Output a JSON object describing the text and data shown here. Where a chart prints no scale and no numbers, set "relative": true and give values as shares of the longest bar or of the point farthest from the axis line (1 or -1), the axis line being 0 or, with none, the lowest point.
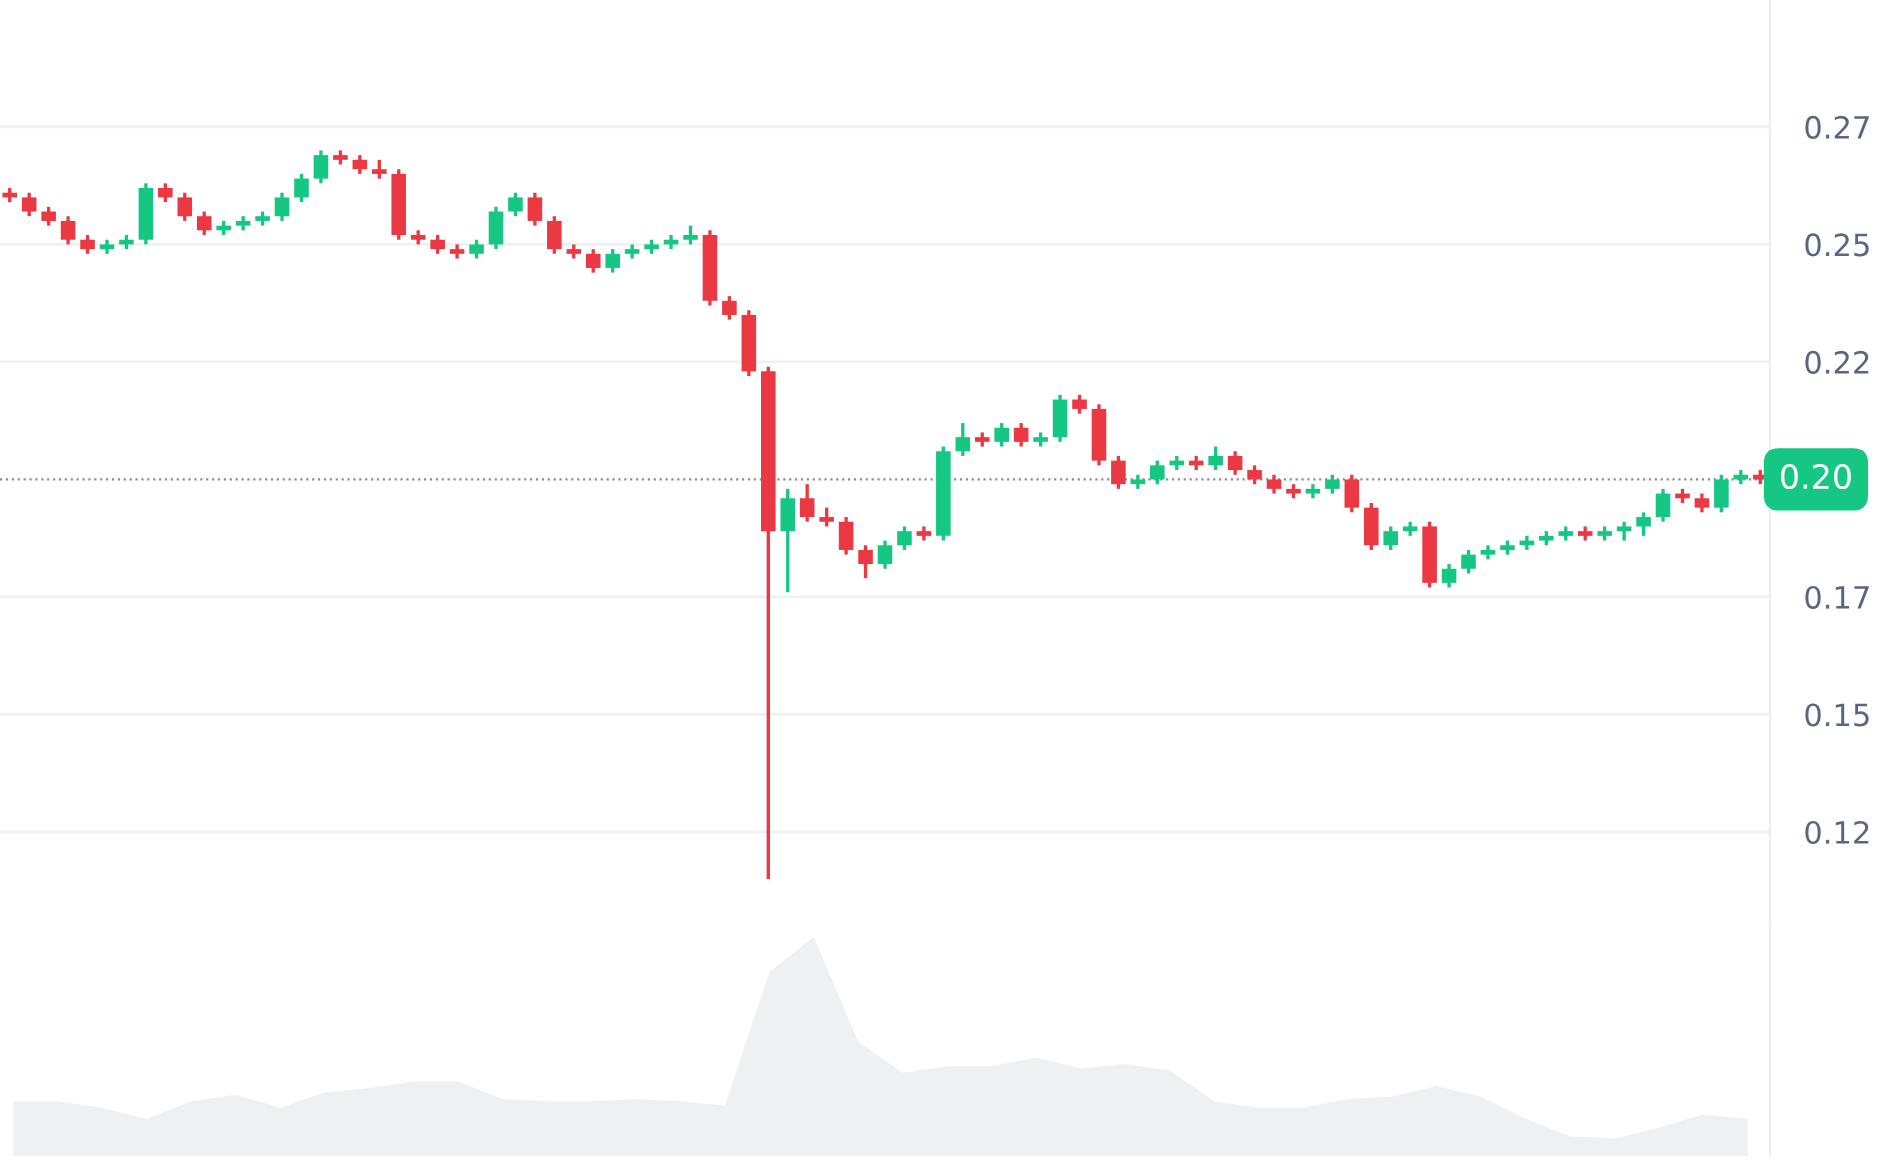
{
  "chart_data": [
    {
      "type": "candlestick",
      "categories": [
        null,
        null,
        null,
        null,
        null,
        null,
        null,
        null,
        null,
        null,
        null,
        null,
        null,
        null,
        null,
        null,
        null,
        null,
        null,
        null,
        null,
        null,
        null,
        null,
        null,
        null,
        null,
        null,
        null,
        null,
        null,
        null,
        null,
        null,
        null,
        null,
        null,
        null,
        null,
        null,
        null,
        null,
        null,
        null,
        null,
        null,
        null,
        null,
        null,
        null,
        null,
        null,
        null,
        null,
        null,
        null,
        null,
        null,
        null,
        null,
        null,
        null,
        null,
        null,
        null,
        null,
        null,
        null,
        null,
        null,
        null,
        null,
        null,
        null,
        null,
        null,
        null,
        null,
        null,
        null,
        null,
        null,
        null,
        null,
        null,
        null,
        null,
        null,
        null,
        null,
        null
      ],
      "ohlc": [
        [
          0.261,
          0.262,
          0.259,
          0.26
        ],
        [
          0.26,
          0.261,
          0.256,
          0.257
        ],
        [
          0.257,
          0.258,
          0.254,
          0.255
        ],
        [
          0.255,
          0.256,
          0.25,
          0.251
        ],
        [
          0.251,
          0.252,
          0.248,
          0.249
        ],
        [
          0.249,
          0.251,
          0.248,
          0.25
        ],
        [
          0.25,
          0.252,
          0.249,
          0.251
        ],
        [
          0.251,
          0.263,
          0.25,
          0.262
        ],
        [
          0.262,
          0.263,
          0.259,
          0.26
        ],
        [
          0.26,
          0.261,
          0.255,
          0.256
        ],
        [
          0.256,
          0.257,
          0.252,
          0.253
        ],
        [
          0.253,
          0.255,
          0.252,
          0.254
        ],
        [
          0.254,
          0.256,
          0.253,
          0.255
        ],
        [
          0.255,
          0.257,
          0.254,
          0.256
        ],
        [
          0.256,
          0.261,
          0.255,
          0.26
        ],
        [
          0.26,
          0.265,
          0.259,
          0.264
        ],
        [
          0.264,
          0.27,
          0.263,
          0.269
        ],
        [
          0.269,
          0.27,
          0.267,
          0.268
        ],
        [
          0.268,
          0.269,
          0.265,
          0.266
        ],
        [
          0.266,
          0.268,
          0.264,
          0.265
        ],
        [
          0.265,
          0.266,
          0.251,
          0.252
        ],
        [
          0.252,
          0.253,
          0.25,
          0.251
        ],
        [
          0.251,
          0.252,
          0.248,
          0.249
        ],
        [
          0.249,
          0.25,
          0.247,
          0.248
        ],
        [
          0.248,
          0.251,
          0.247,
          0.25
        ],
        [
          0.25,
          0.258,
          0.249,
          0.257
        ],
        [
          0.257,
          0.261,
          0.256,
          0.26
        ],
        [
          0.26,
          0.261,
          0.254,
          0.255
        ],
        [
          0.255,
          0.256,
          0.248,
          0.249
        ],
        [
          0.249,
          0.25,
          0.247,
          0.248
        ],
        [
          0.248,
          0.249,
          0.244,
          0.245
        ],
        [
          0.245,
          0.249,
          0.244,
          0.248
        ],
        [
          0.248,
          0.25,
          0.247,
          0.249
        ],
        [
          0.249,
          0.251,
          0.248,
          0.25
        ],
        [
          0.25,
          0.252,
          0.249,
          0.251
        ],
        [
          0.251,
          0.254,
          0.25,
          0.252
        ],
        [
          0.252,
          0.253,
          0.237,
          0.238
        ],
        [
          0.238,
          0.239,
          0.234,
          0.235
        ],
        [
          0.235,
          0.236,
          0.222,
          0.223
        ],
        [
          0.223,
          0.224,
          0.115,
          0.189
        ],
        [
          0.189,
          0.198,
          0.176,
          0.196
        ],
        [
          0.196,
          0.199,
          0.191,
          0.192
        ],
        [
          0.192,
          0.194,
          0.19,
          0.191
        ],
        [
          0.191,
          0.192,
          0.184,
          0.185
        ],
        [
          0.185,
          0.186,
          0.179,
          0.182
        ],
        [
          0.182,
          0.187,
          0.181,
          0.186
        ],
        [
          0.186,
          0.19,
          0.185,
          0.189
        ],
        [
          0.189,
          0.19,
          0.187,
          0.188
        ],
        [
          0.188,
          0.207,
          0.187,
          0.206
        ],
        [
          0.206,
          0.212,
          0.205,
          0.209
        ],
        [
          0.209,
          0.21,
          0.207,
          0.208
        ],
        [
          0.208,
          0.212,
          0.207,
          0.211
        ],
        [
          0.211,
          0.212,
          0.207,
          0.208
        ],
        [
          0.208,
          0.21,
          0.207,
          0.209
        ],
        [
          0.209,
          0.218,
          0.208,
          0.217
        ],
        [
          0.217,
          0.218,
          0.214,
          0.215
        ],
        [
          0.215,
          0.216,
          0.203,
          0.204
        ],
        [
          0.204,
          0.205,
          0.198,
          0.199
        ],
        [
          0.199,
          0.201,
          0.198,
          0.2
        ],
        [
          0.2,
          0.204,
          0.199,
          0.203
        ],
        [
          0.203,
          0.205,
          0.202,
          0.204
        ],
        [
          0.204,
          0.205,
          0.202,
          0.203
        ],
        [
          0.203,
          0.207,
          0.202,
          0.205
        ],
        [
          0.205,
          0.206,
          0.201,
          0.202
        ],
        [
          0.202,
          0.203,
          0.199,
          0.2
        ],
        [
          0.2,
          0.201,
          0.197,
          0.198
        ],
        [
          0.198,
          0.199,
          0.196,
          0.197
        ],
        [
          0.197,
          0.199,
          0.196,
          0.198
        ],
        [
          0.198,
          0.201,
          0.197,
          0.2
        ],
        [
          0.2,
          0.201,
          0.193,
          0.194
        ],
        [
          0.194,
          0.195,
          0.185,
          0.186
        ],
        [
          0.186,
          0.19,
          0.185,
          0.189
        ],
        [
          0.189,
          0.191,
          0.188,
          0.19
        ],
        [
          0.19,
          0.191,
          0.177,
          0.178
        ],
        [
          0.178,
          0.182,
          0.177,
          0.181
        ],
        [
          0.181,
          0.185,
          0.18,
          0.184
        ],
        [
          0.184,
          0.186,
          0.183,
          0.185
        ],
        [
          0.185,
          0.187,
          0.184,
          0.186
        ],
        [
          0.186,
          0.188,
          0.185,
          0.187
        ],
        [
          0.187,
          0.189,
          0.186,
          0.188
        ],
        [
          0.188,
          0.19,
          0.187,
          0.189
        ],
        [
          0.189,
          0.19,
          0.187,
          0.188
        ],
        [
          0.188,
          0.19,
          0.187,
          0.189
        ],
        [
          0.189,
          0.191,
          0.187,
          0.19
        ],
        [
          0.19,
          0.193,
          0.188,
          0.192
        ],
        [
          0.192,
          0.198,
          0.191,
          0.197
        ],
        [
          0.197,
          0.198,
          0.195,
          0.196
        ],
        [
          0.196,
          0.197,
          0.193,
          0.194
        ],
        [
          0.194,
          0.201,
          0.193,
          0.2
        ],
        [
          0.2,
          0.202,
          0.199,
          0.201
        ],
        [
          0.201,
          0.202,
          0.199,
          0.2
        ]
      ],
      "colors": [
        "#ea3943",
        "#ea3943",
        "#ea3943",
        "#ea3943",
        "#ea3943",
        "#16c784",
        "#16c784",
        "#16c784",
        "#ea3943",
        "#ea3943",
        "#ea3943",
        "#16c784",
        "#16c784",
        "#16c784",
        "#16c784",
        "#16c784",
        "#16c784",
        "#ea3943",
        "#ea3943",
        "#ea3943",
        "#ea3943",
        "#ea3943",
        "#ea3943",
        "#ea3943",
        "#16c784",
        "#16c784",
        "#16c784",
        "#ea3943",
        "#ea3943",
        "#ea3943",
        "#ea3943",
        "#16c784",
        "#16c784",
        "#16c784",
        "#16c784",
        "#16c784",
        "#ea3943",
        "#ea3943",
        "#ea3943",
        "#ea3943",
        "#16c784",
        "#ea3943",
        "#ea3943",
        "#ea3943",
        "#ea3943",
        "#16c784",
        "#16c784",
        "#ea3943",
        "#16c784",
        "#16c784",
        "#ea3943",
        "#16c784",
        "#ea3943",
        "#16c784",
        "#16c784",
        "#ea3943",
        "#ea3943",
        "#ea3943",
        "#16c784",
        "#16c784",
        "#16c784",
        "#ea3943",
        "#16c784",
        "#ea3943",
        "#ea3943",
        "#ea3943",
        "#ea3943",
        "#16c784",
        "#16c784",
        "#ea3943",
        "#ea3943",
        "#16c784",
        "#16c784",
        "#ea3943",
        "#16c784",
        "#16c784",
        "#16c784",
        "#16c784",
        "#16c784",
        "#16c784",
        "#16c784",
        "#ea3943",
        "#16c784",
        "#16c784",
        "#16c784",
        "#16c784",
        "#ea3943",
        "#ea3943",
        "#16c784",
        "#16c784",
        "#ea3943"
      ],
      "ylim": [
        0.105,
        0.302
      ],
      "yticks": [
        {
          "value": 0.275,
          "label": "0.27"
        },
        {
          "value": 0.25,
          "label": "0.25"
        },
        {
          "value": 0.225,
          "label": "0.22"
        },
        {
          "value": 0.175,
          "label": "0.17"
        },
        {
          "value": 0.15,
          "label": "0.15"
        },
        {
          "value": 0.125,
          "label": "0.12"
        }
      ],
      "grid": "y",
      "tick_labels": "y",
      "ref_lines": [
        {
          "axis": "y",
          "value": 0.2,
          "label": "0.20",
          "color": "#8a8f99",
          "line_style": "dotted"
        }
      ]
    },
    {
      "type": "area",
      "relative": true,
      "categories": [
        null,
        null,
        null,
        null,
        null,
        null,
        null,
        null,
        null,
        null,
        null,
        null,
        null,
        null,
        null,
        null,
        null,
        null,
        null,
        null,
        null,
        null,
        null,
        null,
        null,
        null,
        null,
        null,
        null,
        null,
        null,
        null,
        null,
        null,
        null,
        null,
        null,
        null,
        null,
        null
      ],
      "values": [
        0.25,
        0.25,
        0.22,
        0.17,
        0.25,
        0.28,
        0.22,
        0.29,
        0.31,
        0.34,
        0.34,
        0.26,
        0.25,
        0.25,
        0.26,
        0.25,
        0.23,
        0.84,
        1,
        0.52,
        0.38,
        0.41,
        0.41,
        0.45,
        0.4,
        0.42,
        0.39,
        0.25,
        0.22,
        0.22,
        0.26,
        0.27,
        0.32,
        0.27,
        0.17,
        0.09,
        0.08,
        0.13,
        0.19,
        0.17
      ],
      "color": "#eef0f4"
    }
  ]
}
